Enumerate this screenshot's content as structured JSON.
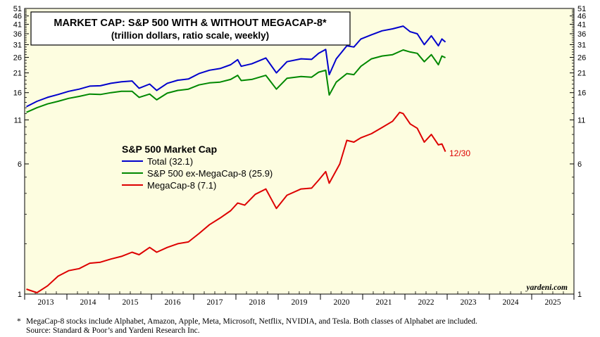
{
  "chart_data": {
    "type": "line",
    "title": "MARKET CAP: S&P 500 WITH & WITHOUT MEGACAP-8*",
    "subtitle": "(trillion dollars, ratio scale, weekly)",
    "scale": "log",
    "ylim": [
      1,
      51
    ],
    "yticks_left": [
      "51",
      "46",
      "41",
      "36",
      "31",
      "26",
      "21",
      "16",
      "11",
      "6",
      "1"
    ],
    "yticks_right": [
      "51",
      "46",
      "41",
      "36",
      "31",
      "26",
      "21",
      "16",
      "11",
      "6",
      "1"
    ],
    "xlim": [
      "2013-01",
      "2025-12"
    ],
    "xticks": [
      "2013",
      "2014",
      "2015",
      "2016",
      "2017",
      "2018",
      "2019",
      "2020",
      "2021",
      "2022",
      "2023",
      "2024",
      "2025"
    ],
    "grid": false,
    "legend_title": "S&P 500 Market Cap",
    "legend_position": "center-left",
    "end_label": "12/30",
    "watermark": "yardeni.com",
    "background_color": "#fdfde0",
    "series": [
      {
        "name": "Total (32.1)",
        "color": "#0000cc",
        "points": [
          [
            "2013-01",
            13.2
          ],
          [
            "2013-04",
            14.2
          ],
          [
            "2013-07",
            15.0
          ],
          [
            "2013-10",
            15.6
          ],
          [
            "2014-01",
            16.3
          ],
          [
            "2014-04",
            16.8
          ],
          [
            "2014-07",
            17.5
          ],
          [
            "2014-10",
            17.6
          ],
          [
            "2015-01",
            18.2
          ],
          [
            "2015-04",
            18.6
          ],
          [
            "2015-07",
            18.8
          ],
          [
            "2015-09",
            17.0
          ],
          [
            "2015-12",
            18.0
          ],
          [
            "2016-02",
            16.5
          ],
          [
            "2016-05",
            18.2
          ],
          [
            "2016-08",
            19.0
          ],
          [
            "2016-11",
            19.3
          ],
          [
            "2017-02",
            20.8
          ],
          [
            "2017-05",
            21.8
          ],
          [
            "2017-08",
            22.3
          ],
          [
            "2017-11",
            23.5
          ],
          [
            "2018-01",
            25.2
          ],
          [
            "2018-02",
            23.0
          ],
          [
            "2018-05",
            23.8
          ],
          [
            "2018-09",
            25.8
          ],
          [
            "2018-12",
            21.0
          ],
          [
            "2019-03",
            24.5
          ],
          [
            "2019-07",
            25.5
          ],
          [
            "2019-10",
            25.3
          ],
          [
            "2019-12",
            27.5
          ],
          [
            "2020-02",
            29.0
          ],
          [
            "2020-03",
            20.5
          ],
          [
            "2020-05",
            25.5
          ],
          [
            "2020-08",
            30.5
          ],
          [
            "2020-10",
            30.0
          ],
          [
            "2020-12",
            33.5
          ],
          [
            "2021-03",
            35.5
          ],
          [
            "2021-06",
            37.5
          ],
          [
            "2021-09",
            38.5
          ],
          [
            "2021-12",
            40.0
          ],
          [
            "2022-02",
            37.0
          ],
          [
            "2022-04",
            36.0
          ],
          [
            "2022-06",
            31.0
          ],
          [
            "2022-08",
            35.0
          ],
          [
            "2022-10",
            30.5
          ],
          [
            "2022-11",
            33.5
          ],
          [
            "2022-12",
            32.1
          ]
        ]
      },
      {
        "name": "S&P 500 ex-MegaCap-8 (25.9)",
        "color": "#008800",
        "points": [
          [
            "2013-01",
            12.2
          ],
          [
            "2013-04",
            13.0
          ],
          [
            "2013-07",
            13.7
          ],
          [
            "2013-10",
            14.2
          ],
          [
            "2014-01",
            14.8
          ],
          [
            "2014-04",
            15.2
          ],
          [
            "2014-07",
            15.7
          ],
          [
            "2014-10",
            15.6
          ],
          [
            "2015-01",
            16.0
          ],
          [
            "2015-04",
            16.3
          ],
          [
            "2015-07",
            16.3
          ],
          [
            "2015-09",
            15.0
          ],
          [
            "2015-12",
            15.7
          ],
          [
            "2016-02",
            14.5
          ],
          [
            "2016-05",
            15.9
          ],
          [
            "2016-08",
            16.5
          ],
          [
            "2016-11",
            16.8
          ],
          [
            "2017-02",
            17.8
          ],
          [
            "2017-05",
            18.3
          ],
          [
            "2017-08",
            18.5
          ],
          [
            "2017-11",
            19.2
          ],
          [
            "2018-01",
            20.3
          ],
          [
            "2018-02",
            18.9
          ],
          [
            "2018-05",
            19.2
          ],
          [
            "2018-09",
            20.3
          ],
          [
            "2018-12",
            16.8
          ],
          [
            "2019-03",
            19.5
          ],
          [
            "2019-07",
            20.0
          ],
          [
            "2019-10",
            19.8
          ],
          [
            "2019-12",
            21.2
          ],
          [
            "2020-02",
            21.8
          ],
          [
            "2020-03",
            15.5
          ],
          [
            "2020-05",
            18.5
          ],
          [
            "2020-08",
            20.8
          ],
          [
            "2020-10",
            20.5
          ],
          [
            "2020-12",
            23.0
          ],
          [
            "2021-03",
            25.5
          ],
          [
            "2021-06",
            26.5
          ],
          [
            "2021-09",
            27.0
          ],
          [
            "2021-12",
            28.8
          ],
          [
            "2022-02",
            28.0
          ],
          [
            "2022-04",
            27.5
          ],
          [
            "2022-06",
            24.5
          ],
          [
            "2022-08",
            27.0
          ],
          [
            "2022-10",
            23.5
          ],
          [
            "2022-11",
            26.5
          ],
          [
            "2022-12",
            25.9
          ]
        ]
      },
      {
        "name": "MegaCap-8 (7.1)",
        "color": "#dd0000",
        "points": [
          [
            "2013-01",
            1.07
          ],
          [
            "2013-04",
            1.02
          ],
          [
            "2013-07",
            1.12
          ],
          [
            "2013-10",
            1.28
          ],
          [
            "2014-01",
            1.38
          ],
          [
            "2014-04",
            1.42
          ],
          [
            "2014-07",
            1.53
          ],
          [
            "2014-10",
            1.55
          ],
          [
            "2015-01",
            1.62
          ],
          [
            "2015-04",
            1.68
          ],
          [
            "2015-07",
            1.78
          ],
          [
            "2015-09",
            1.72
          ],
          [
            "2015-12",
            1.9
          ],
          [
            "2016-02",
            1.78
          ],
          [
            "2016-05",
            1.9
          ],
          [
            "2016-08",
            2.0
          ],
          [
            "2016-11",
            2.05
          ],
          [
            "2017-02",
            2.3
          ],
          [
            "2017-05",
            2.6
          ],
          [
            "2017-08",
            2.85
          ],
          [
            "2017-11",
            3.15
          ],
          [
            "2018-01",
            3.5
          ],
          [
            "2018-03",
            3.4
          ],
          [
            "2018-06",
            3.95
          ],
          [
            "2018-09",
            4.25
          ],
          [
            "2018-12",
            3.25
          ],
          [
            "2019-03",
            3.9
          ],
          [
            "2019-07",
            4.25
          ],
          [
            "2019-10",
            4.3
          ],
          [
            "2019-12",
            4.8
          ],
          [
            "2020-02",
            5.4
          ],
          [
            "2020-03",
            4.6
          ],
          [
            "2020-06",
            6.0
          ],
          [
            "2020-08",
            8.3
          ],
          [
            "2020-10",
            8.1
          ],
          [
            "2020-12",
            8.6
          ],
          [
            "2021-03",
            9.1
          ],
          [
            "2021-06",
            9.9
          ],
          [
            "2021-09",
            10.8
          ],
          [
            "2021-11",
            12.2
          ],
          [
            "2021-12",
            12.0
          ],
          [
            "2022-02",
            10.4
          ],
          [
            "2022-04",
            9.8
          ],
          [
            "2022-06",
            8.1
          ],
          [
            "2022-08",
            9.0
          ],
          [
            "2022-10",
            7.8
          ],
          [
            "2022-11",
            7.9
          ],
          [
            "2022-12",
            7.1
          ]
        ]
      }
    ]
  },
  "footnote": {
    "star": "*",
    "line1": "MegaCap-8 stocks include Alphabet, Amazon, Apple, Meta, Microsoft, Netflix, NVIDIA, and Tesla. Both classes of Alphabet are included.",
    "line2": "Source: Standard & Poor’s and Yardeni Research Inc."
  }
}
